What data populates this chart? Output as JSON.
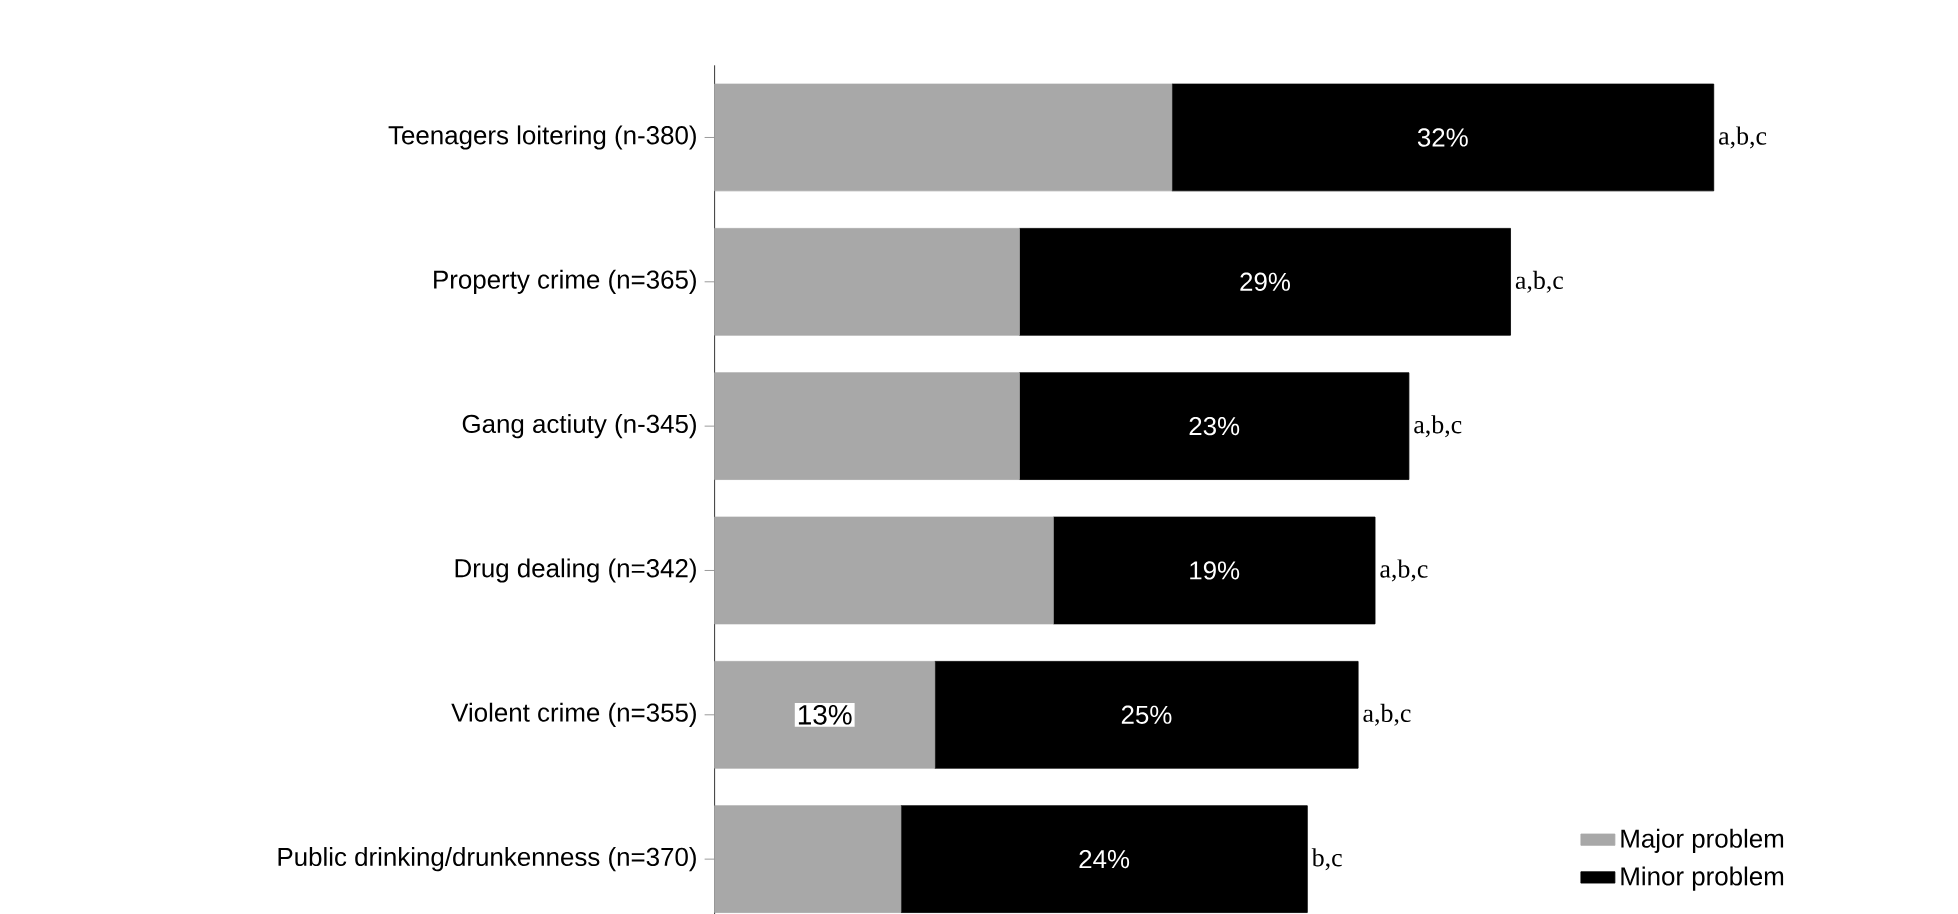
{
  "chart_data": {
    "type": "bar",
    "orientation": "horizontal",
    "stacked": true,
    "legend": "bottom right",
    "categories": [
      "Teenagers loitering (n-380)",
      "Property crime (n=365)",
      "Gang actiuty (n-345)",
      "Drug dealing (n=342)",
      "Violent crime (n=355)",
      "Public drinking/drunkenness (n=370)"
    ],
    "series": [
      {
        "name": "Major problem",
        "color": "#a8a8a8",
        "values": [
          27,
          18,
          18,
          20,
          13,
          11
        ],
        "value_labels": [
          null,
          null,
          null,
          null,
          "13%",
          null
        ]
      },
      {
        "name": "Minor problem",
        "color": "#000000",
        "values": [
          32,
          29,
          23,
          19,
          25,
          24
        ],
        "value_labels": [
          "32%",
          "29%",
          "23%",
          "19%",
          "25%",
          "24%"
        ]
      }
    ],
    "annotations": [
      {
        "text": "a,b,c",
        "y": "Teenagers loitering (n-380)",
        "x": 59
      },
      {
        "text": "a,b,c",
        "y": "Property crime (n=365)",
        "x": 47
      },
      {
        "text": "a,b,c",
        "y": "Gang actiuty (n-345)",
        "x": 41
      },
      {
        "text": "a,b,c",
        "y": "Drug dealing (n=342)",
        "x": 39
      },
      {
        "text": "a,b,c",
        "y": "Violent crime (n=355)",
        "x": 38
      },
      {
        "text": "b,c",
        "y": "Public drinking/drunkenness (n=370)",
        "x": 35
      }
    ]
  }
}
